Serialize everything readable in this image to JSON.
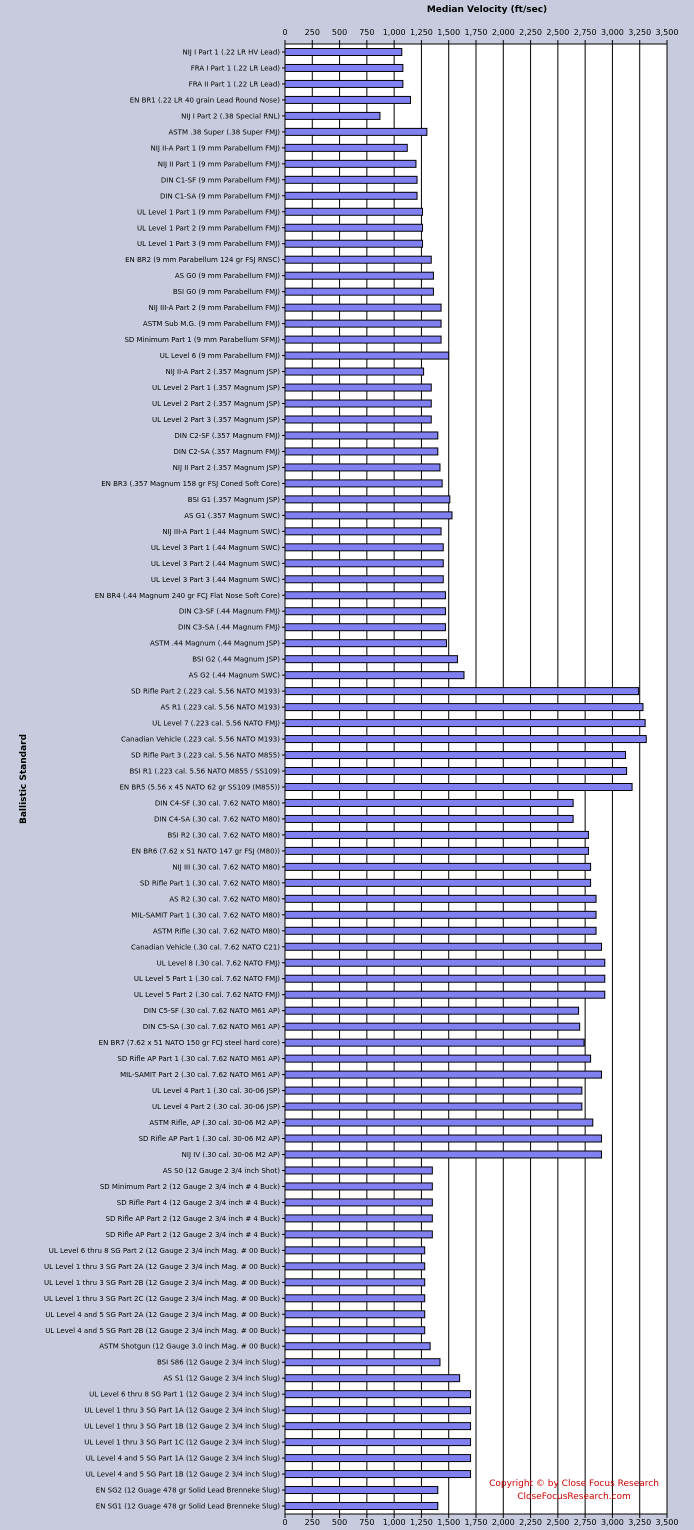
{
  "chart_data": {
    "type": "bar",
    "orientation": "horizontal",
    "title": "Median Velocity (ft/sec)",
    "xlabel": "Median Velocity (ft/sec)",
    "ylabel": "Ballistic Standard",
    "xlim": [
      0,
      3500
    ],
    "x_ticks": [
      "0",
      "250",
      "500",
      "750",
      "1,000",
      "1,250",
      "1,500",
      "1,750",
      "2,000",
      "2,250",
      "2,500",
      "2,750",
      "3,000",
      "3,250",
      "3,500"
    ],
    "grid": true,
    "bar_color": "#8080f0",
    "background_color": "#c7cbdd",
    "copyright_lines": [
      "Copyright © by  Close Focus Research",
      "CloseFocusResearch.com"
    ],
    "categories": [
      "NIJ I Part 1 (.22 LR HV Lead)",
      "FRA I Part 1 (.22 LR Lead)",
      "FRA II Part 1 (.22 LR Lead)",
      "EN BR1 (.22 LR 40 grain Lead Round Nose)",
      "NIJ I Part 2 (.38 Special RNL)",
      "ASTM .38 Super (.38 Super FMJ)",
      "NIJ II-A Part 1 (9 mm Parabellum FMJ)",
      "NIJ II Part 1 (9 mm Parabellum FMJ)",
      "DIN C1-SF (9 mm Parabellum FMJ)",
      "DIN C1-SA (9 mm Parabellum FMJ)",
      "UL Level 1 Part 1 (9 mm Parabellum FMJ)",
      "UL Level 1 Part 2 (9 mm Parabellum FMJ)",
      "UL Level 1 Part 3 (9 mm Parabellum FMJ)",
      "EN BR2 (9 mm Parabellum 124 gr FSJ RNSC)",
      "AS G0 (9 mm Parabellum FMJ)",
      "BSI G0 (9 mm Parabellum FMJ)",
      "NIJ III-A Part 2 (9 mm Parabellum FMJ)",
      "ASTM Sub M.G. (9 mm Parabellum FMJ)",
      "SD Minimum Part 1 (9 mm Parabellum SFMJ)",
      "UL Level 6 (9 mm Parabellum FMJ)",
      "NIJ II-A Part 2 (.357 Magnum JSP)",
      "UL Level 2 Part 1 (.357 Magnum JSP)",
      "UL Level 2 Part 2 (.357 Magnum JSP)",
      "UL Level 2 Part 3 (.357 Magnum JSP)",
      "DIN C2-SF (.357 Magnum FMJ)",
      "DIN C2-SA (.357 Magnum FMJ)",
      "NIJ II Part 2 (.357 Magnum JSP)",
      "EN BR3 (.357 Magnum 158 gr FSJ Coned Soft Core)",
      "BSI G1 (.357 Magnum JSP)",
      "AS G1 (.357 Magnum SWC)",
      "NIJ III-A Part 1 (.44 Magnum SWC)",
      "UL Level 3 Part 1 (.44 Magnum SWC)",
      "UL Level 3 Part 2 (.44 Magnum SWC)",
      "UL Level 3 Part 3 (.44 Magnum SWC)",
      "EN BR4 (.44 Magnum 240 gr FCJ Flat Nose Soft Core)",
      "DIN C3-SF (.44 Magnum FMJ)",
      "DIN C3-SA (.44 Magnum FMJ)",
      "ASTM .44 Magnum (.44 Magnum JSP)",
      "BSI G2 (.44 Magnum JSP)",
      "AS G2 (.44 Magnum SWC)",
      "SD Rifle Part 2 (.223 cal. 5.56 NATO M193)",
      "AS R1 (.223 cal. 5.56 NATO M193)",
      "UL Level 7 (.223 cal. 5.56 NATO FMJ)",
      "Canadian Vehicle (.223 cal. 5.56 NATO M193)",
      "SD Rifle Part 3 (.223 cal. 5.56 NATO M855)",
      "BSI R1 (.223 cal. 5.56 NATO M855 / SS109)",
      "EN BR5 (5.56 x 45 NATO 62 gr SS109 (M855))",
      "DIN C4-SF (.30 cal. 7.62 NATO M80)",
      "DIN C4-SA (.30 cal. 7.62 NATO M80)",
      "BSI R2 (.30 cal. 7.62 NATO M80)",
      "EN BR6 (7.62 x 51 NATO 147 gr FSJ (M80))",
      "NIJ III (.30 cal. 7.62 NATO M80)",
      "SD Rifle Part 1 (.30 cal. 7.62 NATO M80)",
      "AS R2 (.30 cal. 7.62 NATO M80)",
      "MIL-SAMIT Part 1 (.30 cal. 7.62 NATO M80)",
      "ASTM Rifle (.30 cal. 7.62 NATO M80)",
      "Canadian Vehicle (.30 cal. 7.62 NATO C21)",
      "UL Level 8 (.30 cal. 7.62 NATO FMJ)",
      "UL Level 5 Part 1 (.30 cal. 7.62 NATO FMJ)",
      "UL Level 5 Part 2 (.30 cal. 7.62 NATO FMJ)",
      "DIN C5-SF (.30 cal. 7.62 NATO M61 AP)",
      "DIN C5-SA (.30 cal. 7.62 NATO M61 AP)",
      "EN BR7 (7.62 x 51 NATO 150 gr FCJ steel hard core)",
      "SD Rifle AP Part 1 (.30 cal. 7.62 NATO M61 AP)",
      "MIL-SAMIT Part 2 (.30 cal. 7.62 NATO M61 AP)",
      "UL Level 4 Part 1 (.30 cal. 30-06 JSP)",
      "UL Level 4 Part 2 (.30 cal. 30-06 JSP)",
      "ASTM Rifle, AP (.30 cal. 30-06 M2 AP)",
      "SD Rifle AP Part 1 (.30 cal. 30-06 M2 AP)",
      "NIJ IV (.30 cal. 30-06 M2 AP)",
      "AS S0 (12 Gauge 2 3/4 inch Shot)",
      "SD Minimum Part 2 (12 Gauge 2 3/4 inch # 4 Buck)",
      "SD Rifle Part 4 (12 Gauge 2 3/4 inch # 4 Buck)",
      "SD Rifle AP Part 2 (12 Gauge 2 3/4 inch # 4 Buck)",
      "SD Rifle AP Part 2 (12 Gauge 2 3/4 inch # 4 Buck)",
      "UL Level 6 thru 8 SG Part 2 (12 Gauge 2 3/4 inch Mag. # 00 Buck)",
      "UL Level 1 thru 3 SG Part 2A (12 Gauge 2 3/4 inch Mag. # 00 Buck)",
      "UL Level 1 thru 3 SG Part 2B (12 Gauge 2 3/4 inch Mag. # 00 Buck)",
      "UL Level 1 thru 3 SG Part 2C (12 Gauge 2 3/4 inch Mag. # 00 Buck)",
      "UL Level 4 and 5 SG Part 2A (12 Gauge 2 3/4 inch Mag. # 00 Buck)",
      "UL Level 4 and 5 SG Part 2B (12 Gauge 2 3/4 inch Mag. # 00 Buck)",
      "ASTM Shotgun (12 Gauge 3.0 inch Mag. # 00 Buck)",
      "BSI S86 (12 Gauge 2 3/4 inch Slug)",
      "AS S1 (12 Gauge 2 3/4 inch Slug)",
      "UL Level 6 thru 8 SG Part 1 (12 Gauge 2 3/4 inch Slug)",
      "UL Level 1 thru 3 SG Part 1A (12 Gauge 2 3/4 inch Slug)",
      "UL Level 1 thru 3 SG Part 1B (12 Gauge 2 3/4 inch Slug)",
      "UL Level 1 thru 3 SG Part 1C (12 Gauge 2 3/4 inch Slug)",
      "UL Level 4 and 5 SG Part 1A (12 Gauge 2 3/4 inch Slug)",
      "UL Level 4 and 5 SG Part 1B (12 Gauge 2 3/4 inch Slug)",
      "EN SG2 (12 Guage 478 gr Solid Lead Brenneke Slug)",
      "EN SG1 (12 Guage 478 gr Solid Lead Brenneke Slug)"
    ],
    "values": [
      1070,
      1080,
      1080,
      1150,
      870,
      1300,
      1120,
      1200,
      1210,
      1210,
      1260,
      1260,
      1260,
      1340,
      1360,
      1360,
      1430,
      1430,
      1430,
      1500,
      1270,
      1340,
      1340,
      1340,
      1400,
      1400,
      1420,
      1440,
      1510,
      1530,
      1430,
      1450,
      1450,
      1450,
      1470,
      1470,
      1470,
      1480,
      1580,
      1640,
      3240,
      3280,
      3300,
      3310,
      3120,
      3130,
      3180,
      2640,
      2640,
      2780,
      2780,
      2800,
      2800,
      2850,
      2850,
      2850,
      2900,
      2930,
      2930,
      2930,
      2690,
      2700,
      2740,
      2800,
      2900,
      2720,
      2720,
      2820,
      2900,
      2900,
      1350,
      1350,
      1350,
      1350,
      1350,
      1280,
      1280,
      1280,
      1280,
      1280,
      1280,
      1330,
      1420,
      1600,
      1700,
      1700,
      1700,
      1700,
      1700,
      1700,
      1400,
      1400
    ]
  }
}
